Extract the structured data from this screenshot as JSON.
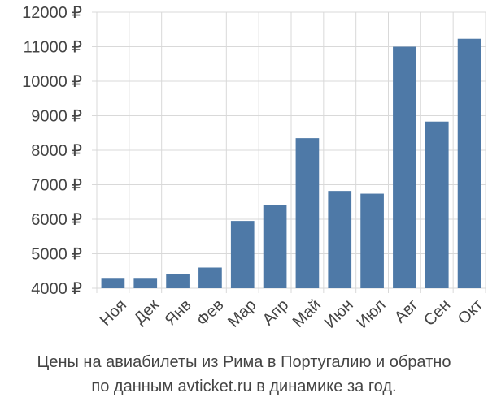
{
  "chart_data": {
    "type": "bar",
    "categories": [
      "Ноя",
      "Дек",
      "Янв",
      "Фев",
      "Мар",
      "Апр",
      "Май",
      "Июн",
      "Июл",
      "Авг",
      "Сен",
      "Окт"
    ],
    "values": [
      4300,
      4300,
      4400,
      4600,
      5950,
      6420,
      8350,
      6820,
      6740,
      11000,
      8830,
      11230
    ],
    "ylim": [
      4000,
      12000
    ],
    "yticks": [
      4000,
      5000,
      6000,
      7000,
      8000,
      9000,
      10000,
      11000,
      12000
    ],
    "ytick_labels": [
      "4000 ₽",
      "5000 ₽",
      "6000 ₽",
      "7000 ₽",
      "8000 ₽",
      "9000 ₽",
      "10000 ₽",
      "11000 ₽",
      "12000 ₽"
    ],
    "grid": true,
    "bar_color": "#4e79a7",
    "grid_color": "#d9d9d9"
  },
  "caption": {
    "line1": "Цены на авиабилеты из Рима в Португалию и обратно",
    "line2": "по данным avticket.ru в динамике за год."
  }
}
